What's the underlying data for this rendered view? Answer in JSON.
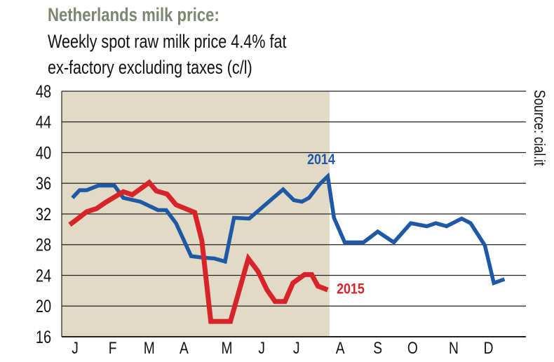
{
  "chart_data": {
    "type": "line",
    "title": "Netherlands milk price:",
    "subtitle": [
      "Weekly spot raw milk price 4.4% fat",
      "ex-factory excluding taxes (c/l)"
    ],
    "source": "Source: cial.it",
    "xlabel": "",
    "ylabel": "",
    "ylim": [
      16,
      48
    ],
    "yticks": [
      16,
      20,
      24,
      28,
      32,
      36,
      40,
      44,
      48
    ],
    "xlim_weeks": [
      0,
      52
    ],
    "months": [
      {
        "label": "J",
        "week": 1.5
      },
      {
        "label": "F",
        "week": 5.7
      },
      {
        "label": "M",
        "week": 9.8
      },
      {
        "label": "A",
        "week": 13.7
      },
      {
        "label": "M",
        "week": 18.5
      },
      {
        "label": "J",
        "week": 22.4
      },
      {
        "label": "J",
        "week": 26.3
      },
      {
        "label": "A",
        "week": 31.2
      },
      {
        "label": "S",
        "week": 35.4
      },
      {
        "label": "O",
        "week": 39.3
      },
      {
        "label": "N",
        "week": 43.9
      },
      {
        "label": "D",
        "week": 47.8
      }
    ],
    "shaded_until_week": 30,
    "grid": true,
    "series": [
      {
        "name": "2014",
        "color": "#1f58a5",
        "label_week": 27.5,
        "label_value": 38.5,
        "x": [
          1.2,
          2.0,
          2.8,
          4.1,
          5.9,
          6.9,
          8.8,
          10.8,
          11.7,
          12.8,
          14.5,
          15.9,
          17.1,
          18.3,
          19.3,
          21.0,
          23.0,
          24.8,
          26.0,
          26.9,
          27.7,
          28.9,
          29.8,
          30.5,
          31.7,
          33.8,
          35.4,
          37.2,
          39.1,
          40.9,
          41.9,
          43.1,
          44.8,
          45.8,
          47.4,
          48.4,
          49.6
        ],
        "y": [
          34.1,
          35.1,
          35.1,
          35.7,
          35.7,
          34.1,
          33.6,
          32.5,
          32.5,
          30.8,
          26.5,
          26.3,
          26.2,
          25.8,
          31.5,
          31.4,
          33.4,
          35.2,
          33.8,
          33.6,
          34.1,
          35.9,
          36.9,
          31.5,
          28.3,
          28.3,
          29.7,
          28.3,
          30.8,
          30.4,
          30.8,
          30.4,
          31.4,
          30.8,
          27.9,
          23.0,
          23.5
        ]
      },
      {
        "name": "2015",
        "color": "#d7242b",
        "label_week": 30.8,
        "label_value": 21.6,
        "x": [
          0.9,
          1.7,
          2.8,
          3.9,
          4.9,
          6.9,
          7.9,
          9.8,
          10.6,
          11.8,
          12.8,
          14.9,
          15.7,
          16.7,
          18.9,
          20.9,
          22.0,
          23.0,
          23.9,
          25.0,
          25.9,
          27.2,
          28.0,
          28.7,
          29.8
        ],
        "y": [
          30.6,
          31.3,
          32.3,
          32.7,
          33.5,
          34.9,
          34.5,
          36.1,
          35.0,
          34.6,
          33.2,
          32.2,
          28.5,
          18.0,
          18.0,
          26.2,
          24.5,
          22.1,
          20.6,
          20.6,
          23.0,
          24.1,
          24.1,
          22.6,
          22.1
        ]
      }
    ]
  }
}
